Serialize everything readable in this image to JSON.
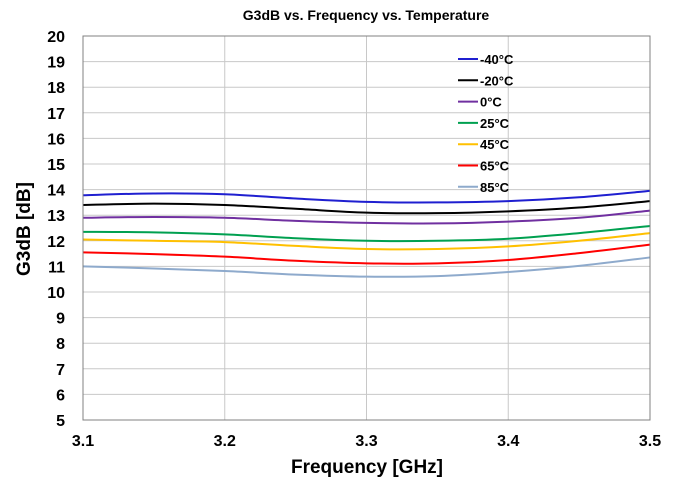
{
  "chart_data": {
    "type": "line",
    "title": "G3dB vs. Frequency vs. Temperature",
    "xlabel": "Frequency [GHz]",
    "ylabel": "G3dB [dB]",
    "xlim": [
      3.1,
      3.5
    ],
    "ylim": [
      5,
      20
    ],
    "x_ticks": [
      "3.1",
      "3.2",
      "3.3",
      "3.4",
      "3.5"
    ],
    "y_ticks": [
      "5",
      "6",
      "7",
      "8",
      "9",
      "10",
      "11",
      "12",
      "13",
      "14",
      "15",
      "16",
      "17",
      "18",
      "19",
      "20"
    ],
    "grid": true,
    "legend_position": "top-right",
    "x": [
      3.1,
      3.15,
      3.2,
      3.25,
      3.3,
      3.35,
      3.4,
      3.45,
      3.5
    ],
    "series": [
      {
        "name": "-40°C",
        "color": "#1f1fd0",
        "values": [
          13.78,
          13.85,
          13.82,
          13.65,
          13.52,
          13.5,
          13.55,
          13.7,
          13.95
        ]
      },
      {
        "name": "-20°C",
        "color": "#000000",
        "values": [
          13.4,
          13.45,
          13.4,
          13.25,
          13.1,
          13.08,
          13.15,
          13.3,
          13.55
        ]
      },
      {
        "name": "0°C",
        "color": "#7030a0",
        "values": [
          12.9,
          12.93,
          12.9,
          12.78,
          12.7,
          12.68,
          12.75,
          12.9,
          13.18
        ]
      },
      {
        "name": "25°C",
        "color": "#00a050",
        "values": [
          12.35,
          12.33,
          12.25,
          12.1,
          12.0,
          12.0,
          12.08,
          12.3,
          12.58
        ]
      },
      {
        "name": "45°C",
        "color": "#ffc000",
        "values": [
          12.05,
          12.0,
          11.95,
          11.8,
          11.68,
          11.68,
          11.78,
          12.0,
          12.3
        ]
      },
      {
        "name": "65°C",
        "color": "#ff0000",
        "values": [
          11.55,
          11.48,
          11.38,
          11.22,
          11.12,
          11.12,
          11.25,
          11.52,
          11.85
        ]
      },
      {
        "name": "85°C",
        "color": "#8eaacc",
        "values": [
          11.0,
          10.92,
          10.82,
          10.68,
          10.6,
          10.62,
          10.78,
          11.02,
          11.35
        ]
      }
    ]
  }
}
